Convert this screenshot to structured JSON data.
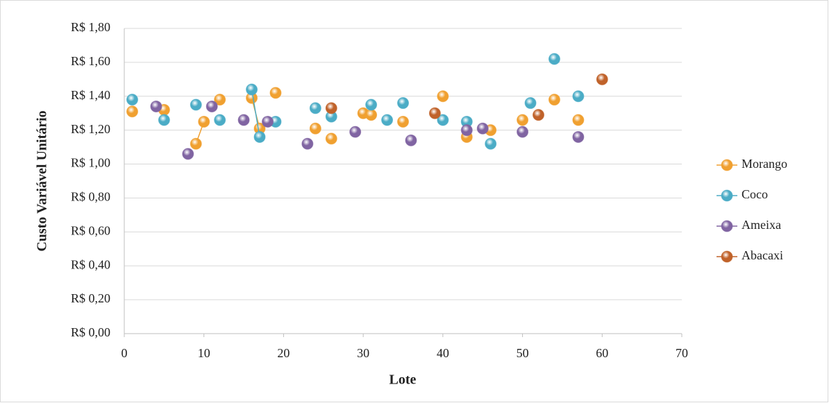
{
  "chart_data": {
    "type": "scatter",
    "xlabel": "Lote",
    "ylabel": "Custo Variável Unitário",
    "xlim": [
      0,
      70
    ],
    "xticks": [
      0,
      10,
      20,
      30,
      40,
      50,
      60,
      70
    ],
    "ylim": [
      0,
      1.8
    ],
    "yticks": [
      {
        "value": 0,
        "label": "R$ 0,00"
      },
      {
        "value": 0.2,
        "label": "R$ 0,20"
      },
      {
        "value": 0.4,
        "label": "R$ 0,40"
      },
      {
        "value": 0.6,
        "label": "R$ 0,60"
      },
      {
        "value": 0.8,
        "label": "R$ 0,80"
      },
      {
        "value": 1.0,
        "label": "R$ 1,00"
      },
      {
        "value": 1.2,
        "label": "R$ 1,20"
      },
      {
        "value": 1.4,
        "label": "R$ 1,40"
      },
      {
        "value": 1.6,
        "label": "R$ 1,60"
      },
      {
        "value": 1.8,
        "label": "R$ 1,80"
      }
    ],
    "grid": true,
    "legend": "right",
    "series": [
      {
        "name": "Morango",
        "color": "#f0a030",
        "x": [
          1,
          5,
          9,
          10,
          12,
          16,
          17,
          19,
          24,
          26,
          30,
          31,
          35,
          40,
          43,
          46,
          50,
          54,
          57
        ],
        "values": [
          1.31,
          1.32,
          1.12,
          1.25,
          1.38,
          1.39,
          1.21,
          1.42,
          1.21,
          1.15,
          1.3,
          1.29,
          1.25,
          1.4,
          1.16,
          1.2,
          1.26,
          1.38,
          1.26
        ]
      },
      {
        "name": "Coco",
        "color": "#4bacc6",
        "x": [
          1,
          5,
          9,
          12,
          16,
          17,
          19,
          24,
          26,
          31,
          33,
          35,
          40,
          43,
          46,
          51,
          54,
          57
        ],
        "values": [
          1.38,
          1.26,
          1.35,
          1.26,
          1.44,
          1.16,
          1.25,
          1.33,
          1.28,
          1.35,
          1.26,
          1.36,
          1.26,
          1.25,
          1.12,
          1.36,
          1.62,
          1.4
        ]
      },
      {
        "name": "Ameixa",
        "color": "#8064a2",
        "x": [
          4,
          8,
          11,
          15,
          18,
          23,
          29,
          36,
          43,
          45,
          50,
          57
        ],
        "values": [
          1.34,
          1.06,
          1.34,
          1.26,
          1.25,
          1.12,
          1.19,
          1.14,
          1.2,
          1.21,
          1.19,
          1.16
        ]
      },
      {
        "name": "Abacaxi",
        "color": "#c0622a",
        "x": [
          26,
          39,
          52,
          60
        ],
        "values": [
          1.33,
          1.3,
          1.29,
          1.5
        ]
      }
    ]
  }
}
